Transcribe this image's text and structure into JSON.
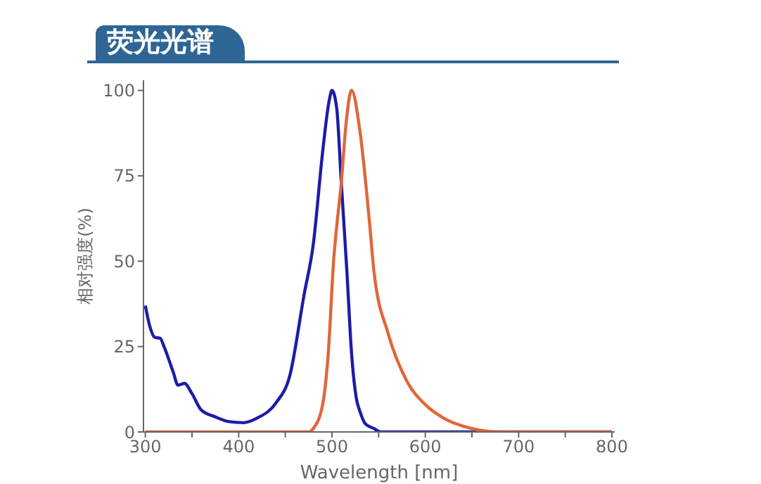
{
  "chart_data": {
    "type": "line",
    "title": "荧光光谱",
    "xlabel": "Wavelength [nm]",
    "ylabel": "相对强度(%)",
    "xlim": [
      298,
      803
    ],
    "xticks": [
      300,
      {
        "value": 350,
        "label": null
      },
      400,
      {
        "value": 450,
        "label": null
      },
      500,
      {
        "value": 550,
        "label": null
      },
      600,
      {
        "value": 650,
        "label": null
      },
      700,
      {
        "value": 750,
        "label": null
      },
      800
    ],
    "ylim": [
      0,
      103
    ],
    "yticks": [
      0,
      25,
      50,
      75,
      100
    ],
    "series": [
      {
        "color": "#1c1ca8",
        "x": [
          300,
          305,
          310,
          316,
          320,
          330,
          335,
          342,
          350,
          360,
          375,
          390,
          405,
          420,
          440,
          455,
          470,
          480,
          490,
          497,
          500,
          505,
          510,
          516,
          521,
          526,
          530,
          536,
          545,
          552,
          600,
          700,
          800
        ],
        "values": [
          37,
          30.7,
          27.7,
          27.4,
          25,
          17.4,
          13.7,
          14.2,
          11.2,
          6.4,
          4.4,
          3,
          2.7,
          4.1,
          8.5,
          16.7,
          40,
          55,
          82,
          97,
          100,
          95,
          73,
          47,
          23,
          10,
          6,
          2.3,
          1,
          0,
          0,
          0,
          0
        ]
      },
      {
        "color": "#e0663a",
        "x": [
          300,
          400,
          475,
          480,
          490,
          496,
          502,
          505,
          510,
          515,
          521,
          530,
          540,
          545,
          560,
          580,
          600,
          620,
          650,
          680,
          700,
          800
        ],
        "values": [
          0,
          0,
          0,
          1,
          8,
          23,
          51,
          60,
          73,
          90,
          100,
          88,
          62,
          47,
          29,
          15,
          8,
          4,
          1,
          0,
          0,
          0
        ]
      }
    ]
  }
}
